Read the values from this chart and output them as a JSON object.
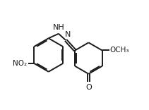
{
  "bg_color": "#ffffff",
  "line_color": "#1a1a1a",
  "line_width": 1.4,
  "font_size": 8.0,
  "bond_color": "#1a1a1a",
  "lcx": 0.26,
  "lcy": 0.5,
  "lr": 0.155,
  "rcx": 0.63,
  "rcy": 0.47,
  "rr": 0.145,
  "nh_label": "NH",
  "n_label": "N",
  "o_label": "O",
  "och3_label": "OCH₃",
  "no2_label": "NO₂"
}
